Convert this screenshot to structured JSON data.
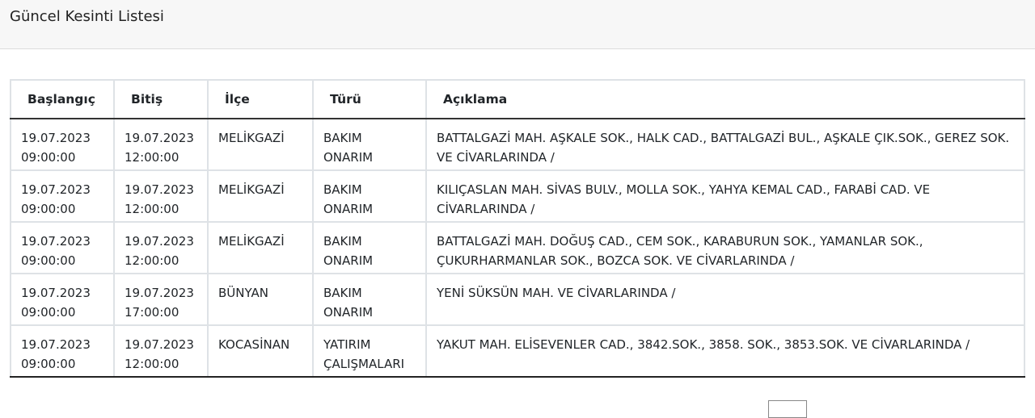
{
  "header": {
    "title": "Güncel Kesinti Listesi"
  },
  "table": {
    "columns": [
      "Başlangıç",
      "Bitiş",
      "İlçe",
      "Türü",
      "Açıklama"
    ],
    "rows": [
      {
        "start_date": "19.07.2023",
        "start_time": "09:00:00",
        "end_date": "19.07.2023",
        "end_time": "12:00:00",
        "district": "MELİKGAZİ",
        "type1": "BAKIM",
        "type2": "ONARIM",
        "description": "BATTALGAZİ MAH. AŞKALE SOK., HALK CAD., BATTALGAZİ BUL., AŞKALE ÇIK.SOK., GEREZ SOK. VE CİVARLARINDA /"
      },
      {
        "start_date": "19.07.2023",
        "start_time": "09:00:00",
        "end_date": "19.07.2023",
        "end_time": "12:00:00",
        "district": "MELİKGAZİ",
        "type1": "BAKIM",
        "type2": "ONARIM",
        "description": "KILIÇASLAN MAH. SİVAS BULV., MOLLA SOK., YAHYA KEMAL CAD., FARABİ CAD. VE CİVARLARINDA /"
      },
      {
        "start_date": "19.07.2023",
        "start_time": "09:00:00",
        "end_date": "19.07.2023",
        "end_time": "12:00:00",
        "district": "MELİKGAZİ",
        "type1": "BAKIM",
        "type2": "ONARIM",
        "description": "BATTALGAZİ MAH. DOĞUŞ CAD., CEM SOK., KARABURUN SOK., YAMANLAR SOK., ÇUKURHARMANLAR SOK., BOZCA SOK. VE CİVARLARINDA /"
      },
      {
        "start_date": "19.07.2023",
        "start_time": "09:00:00",
        "end_date": "19.07.2023",
        "end_time": "17:00:00",
        "district": "BÜNYAN",
        "type1": "BAKIM",
        "type2": "ONARIM",
        "description": "YENİ SÜKSÜN MAH. VE CİVARLARINDA /"
      },
      {
        "start_date": "19.07.2023",
        "start_time": "09:00:00",
        "end_date": "19.07.2023",
        "end_time": "12:00:00",
        "district": "KOCASİNAN",
        "type1": "YATIRIM",
        "type2": "ÇALIŞMALARI",
        "description": "YAKUT MAH. ELİSEVENLER CAD., 3842.SOK., 3858. SOK., 3853.SOK. VE CİVARLARINDA /"
      }
    ]
  }
}
